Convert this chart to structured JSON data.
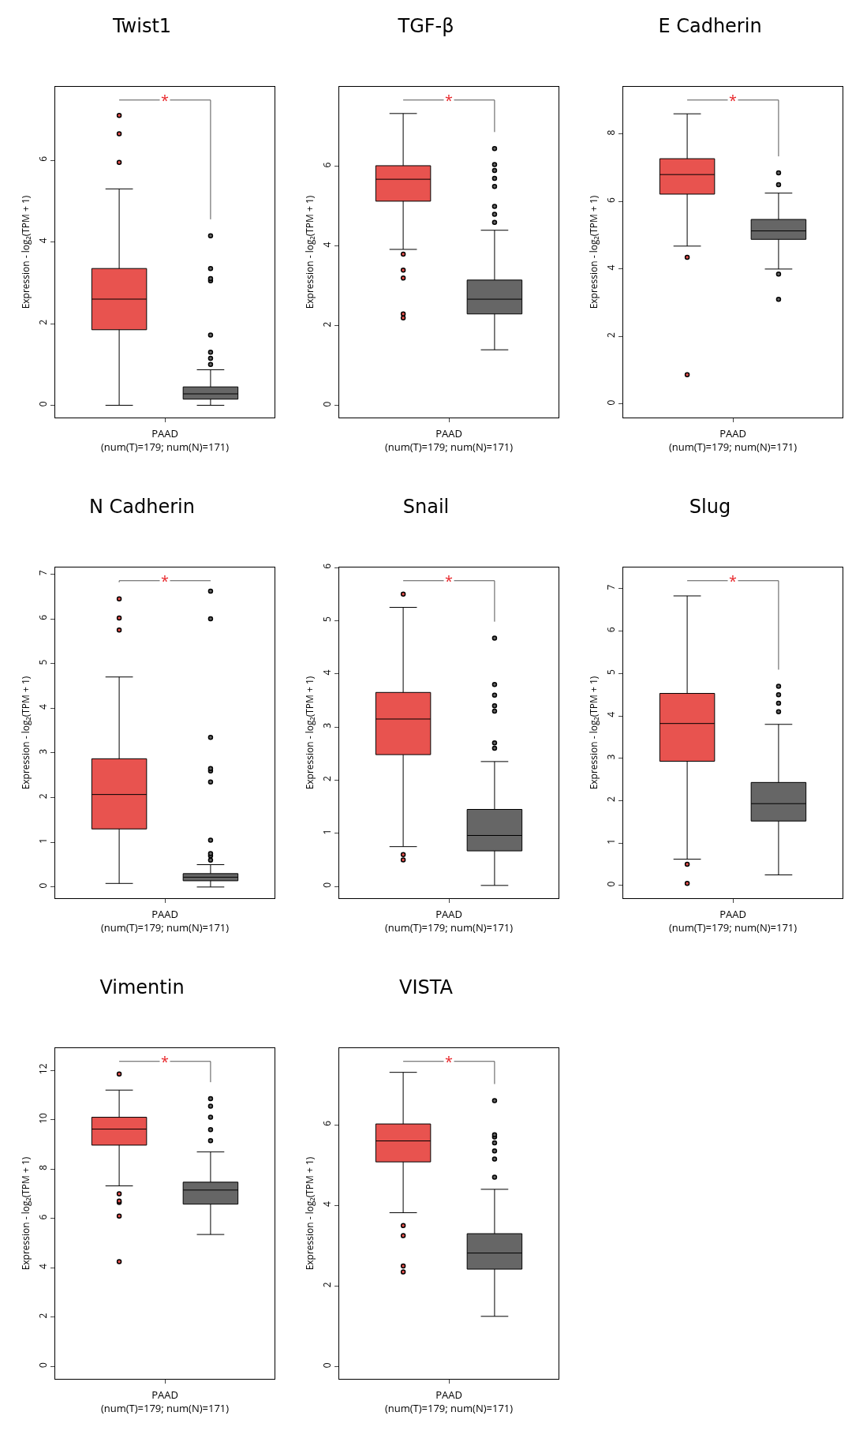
{
  "chart_data": [
    {
      "type": "box",
      "title": "Twist1",
      "xlabel": "PAAD\n(num(T)=179; num(N)=171)",
      "ylabel": "Expression - log₂(TPM + 1)",
      "categories": [
        null,
        null
      ],
      "colors": [
        "#e8534f",
        "#666666"
      ],
      "ylim": [
        -0.3,
        7.8
      ],
      "yticks": [
        0,
        2,
        4,
        6
      ],
      "annotations": [
        "*"
      ],
      "grid": false,
      "boxes": [
        {
          "low": 0,
          "q1": 1.85,
          "median": 2.6,
          "q3": 3.35,
          "high": 5.3,
          "outliers": [
            5.95,
            6.65,
            7.1
          ]
        },
        {
          "low": 0,
          "q1": 0.15,
          "median": 0.28,
          "q3": 0.45,
          "high": 0.87,
          "outliers": [
            1.0,
            1.15,
            1.3,
            1.72,
            3.05,
            3.1,
            3.35,
            4.15
          ]
        }
      ]
    },
    {
      "type": "box",
      "title": "TGF-β",
      "xlabel": "PAAD\n(num(T)=179; num(N)=171)",
      "ylabel": "Expression - log₂(TPM + 1)",
      "categories": [
        null,
        null
      ],
      "colors": [
        "#e8534f",
        "#666666"
      ],
      "ylim": [
        -0.3,
        8.0
      ],
      "yticks": [
        0,
        2,
        4,
        6
      ],
      "annotations": [
        "*"
      ],
      "grid": false,
      "boxes": [
        {
          "low": 3.92,
          "q1": 5.13,
          "median": 5.68,
          "q3": 6.02,
          "high": 7.33,
          "outliers": [
            2.2,
            2.3,
            3.2,
            3.4,
            3.8
          ]
        },
        {
          "low": 1.4,
          "q1": 2.3,
          "median": 2.67,
          "q3": 3.15,
          "high": 4.4,
          "outliers": [
            4.6,
            4.8,
            5.0,
            5.5,
            5.7,
            5.9,
            6.05,
            6.45
          ]
        }
      ]
    },
    {
      "type": "box",
      "title": "E Cadherin",
      "xlabel": "PAAD\n(num(T)=179; num(N)=171)",
      "ylabel": "Expression - log₂(TPM + 1)",
      "categories": [
        null,
        null
      ],
      "colors": [
        "#e8534f",
        "#666666"
      ],
      "ylim": [
        -0.4,
        9.4
      ],
      "yticks": [
        0,
        2,
        4,
        6,
        8
      ],
      "annotations": [
        "*"
      ],
      "grid": false,
      "boxes": [
        {
          "low": 4.68,
          "q1": 6.22,
          "median": 6.8,
          "q3": 7.27,
          "high": 8.6,
          "outliers": [
            0.87,
            4.35
          ]
        },
        {
          "low": 4.0,
          "q1": 4.88,
          "median": 5.13,
          "q3": 5.47,
          "high": 6.25,
          "outliers": [
            3.1,
            3.85,
            6.5,
            6.85
          ]
        }
      ]
    },
    {
      "type": "box",
      "title": "N Cadherin",
      "xlabel": "PAAD\n(num(T)=179; num(N)=171)",
      "ylabel": "Expression - log₂(TPM + 1)",
      "categories": [
        null,
        null
      ],
      "colors": [
        "#e8534f",
        "#666666"
      ],
      "ylim": [
        -0.25,
        7.15
      ],
      "yticks": [
        0,
        1,
        2,
        3,
        4,
        5,
        6,
        7
      ],
      "annotations": [
        "*"
      ],
      "grid": false,
      "boxes": [
        {
          "low": 0.08,
          "q1": 1.3,
          "median": 2.07,
          "q3": 2.87,
          "high": 4.7,
          "outliers": [
            5.75,
            6.02,
            6.45
          ]
        },
        {
          "low": 0,
          "q1": 0.14,
          "median": 0.22,
          "q3": 0.3,
          "high": 0.5,
          "outliers": [
            0.6,
            0.7,
            0.75,
            1.05,
            2.35,
            2.6,
            2.65,
            3.35,
            6.0,
            6.62
          ]
        }
      ]
    },
    {
      "type": "box",
      "title": "Snail",
      "xlabel": "PAAD\n(num(T)=179; num(N)=171)",
      "ylabel": "Expression - log₂(TPM + 1)",
      "categories": [
        null,
        null
      ],
      "colors": [
        "#e8534f",
        "#666666"
      ],
      "ylim": [
        -0.22,
        6.0
      ],
      "yticks": [
        0,
        1,
        2,
        3,
        4,
        5,
        6
      ],
      "annotations": [
        "*"
      ],
      "grid": false,
      "boxes": [
        {
          "low": 0.75,
          "q1": 2.48,
          "median": 3.15,
          "q3": 3.65,
          "high": 5.25,
          "outliers": [
            0.5,
            0.6,
            5.5
          ]
        },
        {
          "low": 0.02,
          "q1": 0.67,
          "median": 0.96,
          "q3": 1.45,
          "high": 2.35,
          "outliers": [
            2.6,
            2.7,
            3.3,
            3.4,
            3.6,
            3.8,
            4.67
          ]
        }
      ]
    },
    {
      "type": "box",
      "title": "Slug",
      "xlabel": "PAAD\n(num(T)=179; num(N)=171)",
      "ylabel": "Expression - log₂(TPM + 1)",
      "categories": [
        null,
        null
      ],
      "colors": [
        "#e8534f",
        "#666666"
      ],
      "ylim": [
        -0.3,
        7.5
      ],
      "yticks": [
        0,
        1,
        2,
        3,
        4,
        5,
        6,
        7
      ],
      "annotations": [
        "*"
      ],
      "grid": false,
      "boxes": [
        {
          "low": 0.62,
          "q1": 2.93,
          "median": 3.82,
          "q3": 4.53,
          "high": 6.83,
          "outliers": [
            0.05,
            0.5
          ]
        },
        {
          "low": 0.25,
          "q1": 1.52,
          "median": 1.93,
          "q3": 2.43,
          "high": 3.8,
          "outliers": [
            4.1,
            4.3,
            4.5,
            4.7
          ]
        }
      ]
    },
    {
      "type": "box",
      "title": "Vimentin",
      "xlabel": "PAAD\n(num(T)=179; num(N)=171)",
      "ylabel": "Expression - log₂(TPM + 1)",
      "categories": [
        null,
        null
      ],
      "colors": [
        "#e8534f",
        "#666666"
      ],
      "ylim": [
        -0.5,
        12.9
      ],
      "yticks": [
        0,
        2,
        4,
        6,
        8,
        10,
        12
      ],
      "annotations": [
        "*"
      ],
      "grid": false,
      "boxes": [
        {
          "low": 7.32,
          "q1": 8.97,
          "median": 9.62,
          "q3": 10.1,
          "high": 11.2,
          "outliers": [
            4.25,
            6.1,
            6.65,
            6.7,
            7.0,
            11.85
          ]
        },
        {
          "low": 5.35,
          "q1": 6.58,
          "median": 7.15,
          "q3": 7.47,
          "high": 8.7,
          "outliers": [
            9.15,
            9.6,
            10.1,
            10.55,
            10.85
          ]
        }
      ]
    },
    {
      "type": "box",
      "title": "VISTA",
      "xlabel": "PAAD\n(num(T)=179; num(N)=171)",
      "ylabel": "Expression - log₂(TPM + 1)",
      "categories": [
        null,
        null
      ],
      "colors": [
        "#e8534f",
        "#666666"
      ],
      "ylim": [
        -0.3,
        7.9
      ],
      "yticks": [
        0,
        2,
        4,
        6
      ],
      "annotations": [
        "*"
      ],
      "grid": false,
      "boxes": [
        {
          "low": 3.82,
          "q1": 5.08,
          "median": 5.6,
          "q3": 6.02,
          "high": 7.3,
          "outliers": [
            2.35,
            2.5,
            3.25,
            3.5
          ]
        },
        {
          "low": 1.25,
          "q1": 2.42,
          "median": 2.82,
          "q3": 3.3,
          "high": 4.4,
          "outliers": [
            4.7,
            5.15,
            5.35,
            5.55,
            5.7,
            5.75,
            6.6
          ]
        }
      ]
    }
  ]
}
